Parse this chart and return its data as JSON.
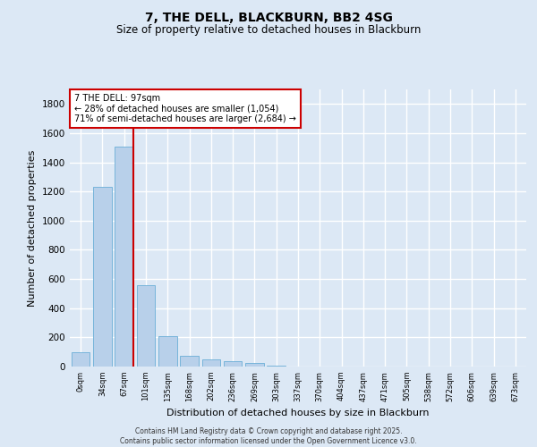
{
  "title": "7, THE DELL, BLACKBURN, BB2 4SG",
  "subtitle": "Size of property relative to detached houses in Blackburn",
  "xlabel": "Distribution of detached houses by size in Blackburn",
  "ylabel": "Number of detached properties",
  "bar_color": "#b8d0ea",
  "bar_edge_color": "#6aaed6",
  "background_color": "#dce8f5",
  "grid_color": "#ffffff",
  "categories": [
    "0sqm",
    "34sqm",
    "67sqm",
    "101sqm",
    "135sqm",
    "168sqm",
    "202sqm",
    "236sqm",
    "269sqm",
    "303sqm",
    "337sqm",
    "370sqm",
    "404sqm",
    "437sqm",
    "471sqm",
    "505sqm",
    "538sqm",
    "572sqm",
    "606sqm",
    "639sqm",
    "673sqm"
  ],
  "values": [
    100,
    1235,
    1510,
    560,
    210,
    75,
    50,
    38,
    25,
    5,
    0,
    0,
    0,
    0,
    0,
    0,
    0,
    0,
    0,
    0,
    0
  ],
  "ylim": [
    0,
    1900
  ],
  "yticks": [
    0,
    200,
    400,
    600,
    800,
    1000,
    1200,
    1400,
    1600,
    1800
  ],
  "property_label": "7 THE DELL: 97sqm",
  "annotation_line1": "← 28% of detached houses are smaller (1,054)",
  "annotation_line2": "71% of semi-detached houses are larger (2,684) →",
  "vline_x_index": 2.5,
  "annotation_box_facecolor": "#ffffff",
  "annotation_box_edgecolor": "#cc0000",
  "vline_color": "#cc0000",
  "footer_line1": "Contains HM Land Registry data © Crown copyright and database right 2025.",
  "footer_line2": "Contains public sector information licensed under the Open Government Licence v3.0."
}
